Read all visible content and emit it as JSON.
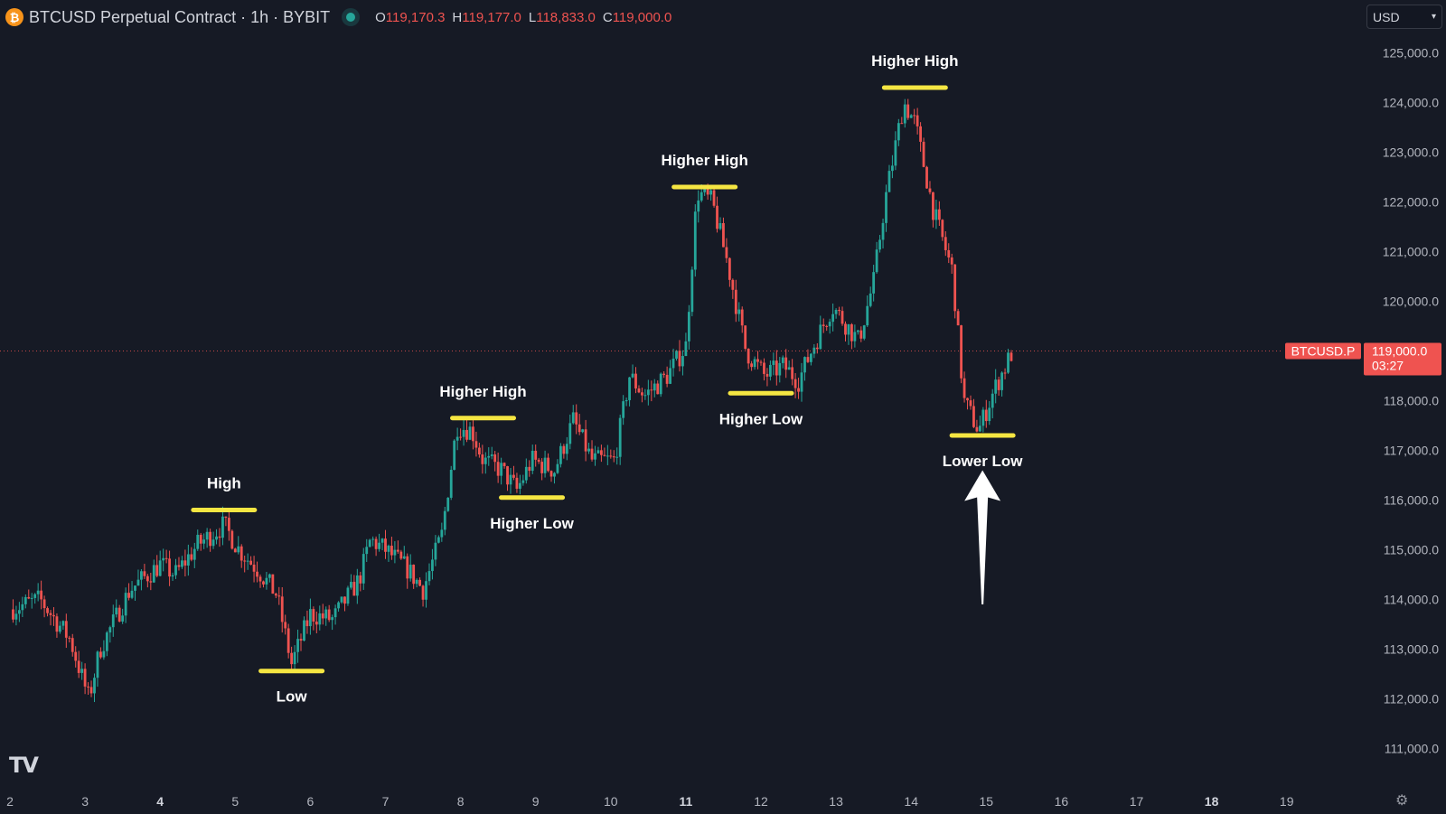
{
  "header": {
    "symbol_icon": "bitcoin-icon",
    "title": "BTCUSD Perpetual Contract · 1h · BYBIT",
    "open_label": "O",
    "open": "119,170.3",
    "high_label": "H",
    "high": "119,177.0",
    "low_label": "L",
    "low": "118,833.0",
    "close_label": "C",
    "close": "119,000.0"
  },
  "currency": {
    "selected": "USD"
  },
  "price_tag": {
    "symbol": "BTCUSD.P",
    "price": "119,000.0",
    "countdown": "03:27"
  },
  "branding": {
    "logo": "TV"
  },
  "colors": {
    "up": "#26a69a",
    "down": "#ef5350",
    "highlight": "#f5e642",
    "background": "#161a25"
  },
  "chart_data": {
    "type": "candlestick",
    "x_ticks": [
      {
        "x": 2,
        "label": "2"
      },
      {
        "x": 3,
        "label": "3"
      },
      {
        "x": 4,
        "label": "4",
        "bold": true
      },
      {
        "x": 5,
        "label": "5"
      },
      {
        "x": 6,
        "label": "6"
      },
      {
        "x": 7,
        "label": "7"
      },
      {
        "x": 8,
        "label": "8"
      },
      {
        "x": 9,
        "label": "9"
      },
      {
        "x": 10,
        "label": "10"
      },
      {
        "x": 11,
        "label": "11",
        "bold": true
      },
      {
        "x": 12,
        "label": "12"
      },
      {
        "x": 13,
        "label": "13"
      },
      {
        "x": 14,
        "label": "14"
      },
      {
        "x": 15,
        "label": "15"
      },
      {
        "x": 16,
        "label": "16"
      },
      {
        "x": 17,
        "label": "17"
      },
      {
        "x": 18,
        "label": "18",
        "bold": true
      },
      {
        "x": 19,
        "label": "19"
      }
    ],
    "y_ticks": [
      {
        "v": 111000,
        "label": "111,000.0"
      },
      {
        "v": 112000,
        "label": "112,000.0"
      },
      {
        "v": 113000,
        "label": "113,000.0"
      },
      {
        "v": 114000,
        "label": "114,000.0"
      },
      {
        "v": 115000,
        "label": "115,000.0"
      },
      {
        "v": 116000,
        "label": "116,000.0"
      },
      {
        "v": 117000,
        "label": "117,000.0"
      },
      {
        "v": 118000,
        "label": "118,000.0"
      },
      {
        "v": 120000,
        "label": "120,000.0"
      },
      {
        "v": 121000,
        "label": "121,000.0"
      },
      {
        "v": 122000,
        "label": "122,000.0"
      },
      {
        "v": 123000,
        "label": "123,000.0"
      },
      {
        "v": 124000,
        "label": "124,000.0"
      },
      {
        "v": 125000,
        "label": "125,000.0"
      }
    ],
    "x_range": [
      2,
      20
    ],
    "y_range": [
      110500,
      125500
    ],
    "last_price": 119000,
    "path": [
      [
        2.0,
        113800
      ],
      [
        2.4,
        114000
      ],
      [
        2.8,
        113200
      ],
      [
        3.05,
        112000
      ],
      [
        3.2,
        113000
      ],
      [
        3.6,
        114200
      ],
      [
        4.0,
        114700
      ],
      [
        4.2,
        114500
      ],
      [
        4.5,
        115100
      ],
      [
        4.85,
        115500
      ],
      [
        5.05,
        115000
      ],
      [
        5.3,
        114600
      ],
      [
        5.55,
        114100
      ],
      [
        5.75,
        112700
      ],
      [
        6.0,
        113700
      ],
      [
        6.3,
        113600
      ],
      [
        6.65,
        114400
      ],
      [
        6.8,
        115200
      ],
      [
        7.0,
        115000
      ],
      [
        7.3,
        114600
      ],
      [
        7.5,
        114200
      ],
      [
        7.75,
        115300
      ],
      [
        7.95,
        117500
      ],
      [
        8.15,
        117400
      ],
      [
        8.3,
        116800
      ],
      [
        8.55,
        116600
      ],
      [
        8.75,
        116200
      ],
      [
        8.95,
        116800
      ],
      [
        9.25,
        116600
      ],
      [
        9.5,
        117600
      ],
      [
        9.75,
        116800
      ],
      [
        10.05,
        116800
      ],
      [
        10.25,
        118500
      ],
      [
        10.45,
        118100
      ],
      [
        10.75,
        118500
      ],
      [
        11.0,
        119100
      ],
      [
        11.15,
        122200
      ],
      [
        11.35,
        122000
      ],
      [
        11.55,
        120800
      ],
      [
        11.8,
        119000
      ],
      [
        12.05,
        118500
      ],
      [
        12.3,
        118700
      ],
      [
        12.5,
        118400
      ],
      [
        12.7,
        119100
      ],
      [
        12.95,
        119900
      ],
      [
        13.3,
        119200
      ],
      [
        13.5,
        120400
      ],
      [
        13.65,
        122000
      ],
      [
        13.9,
        124000
      ],
      [
        14.05,
        123600
      ],
      [
        14.3,
        121800
      ],
      [
        14.55,
        120600
      ],
      [
        14.7,
        118000
      ],
      [
        14.9,
        117400
      ],
      [
        15.1,
        118200
      ],
      [
        15.35,
        119000
      ]
    ],
    "annotations": [
      {
        "label": "High",
        "x": 4.85,
        "y": 115800,
        "label_pos": "above"
      },
      {
        "label": "Low",
        "x": 5.75,
        "y": 112560,
        "label_pos": "below"
      },
      {
        "label": "Higher High",
        "x": 8.3,
        "y": 117650,
        "label_pos": "above"
      },
      {
        "label": "Higher Low",
        "x": 8.95,
        "y": 116050,
        "label_pos": "below"
      },
      {
        "label": "Higher High",
        "x": 11.25,
        "y": 122300,
        "label_pos": "above"
      },
      {
        "label": "Higher Low",
        "x": 12.0,
        "y": 118150,
        "label_pos": "below"
      },
      {
        "label": "Higher High",
        "x": 14.05,
        "y": 124300,
        "label_pos": "above"
      },
      {
        "label": "Lower Low",
        "x": 14.95,
        "y": 117300,
        "label_pos": "below"
      }
    ],
    "arrow": {
      "x": 14.95,
      "y_tip": 116600,
      "y_tail": 113900
    }
  }
}
